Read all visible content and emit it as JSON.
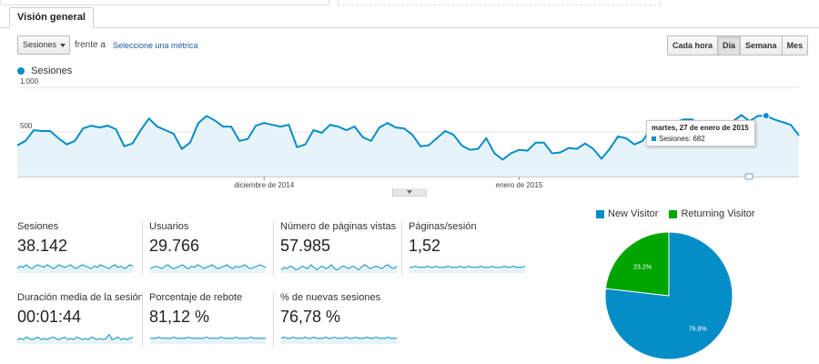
{
  "tabs": [
    {
      "label": "Visión general"
    }
  ],
  "controls": {
    "metric_select": "Sesiones",
    "vs_text": "frente a",
    "select_metric_link": "Seleccione una métrica",
    "periods": [
      {
        "label": "Cada hora",
        "active": false
      },
      {
        "label": "Día",
        "active": true
      },
      {
        "label": "Semana",
        "active": false
      },
      {
        "label": "Mes",
        "active": false
      }
    ]
  },
  "colors": {
    "accent": "#058dc7",
    "fill": "#e6f4fa",
    "returning": "#00a500",
    "link": "#1a5ba8"
  },
  "chart_data": [
    {
      "type": "area",
      "series": [
        {
          "name": "Sesiones",
          "values": [
            350,
            400,
            520,
            510,
            510,
            430,
            360,
            400,
            540,
            570,
            550,
            570,
            530,
            340,
            370,
            520,
            650,
            560,
            520,
            480,
            310,
            380,
            600,
            680,
            630,
            560,
            560,
            400,
            420,
            570,
            600,
            580,
            560,
            580,
            330,
            360,
            520,
            490,
            580,
            560,
            520,
            560,
            440,
            400,
            550,
            600,
            550,
            540,
            470,
            340,
            350,
            430,
            510,
            470,
            350,
            300,
            310,
            430,
            260,
            190,
            260,
            300,
            290,
            380,
            380,
            260,
            270,
            320,
            310,
            370,
            310,
            200,
            310,
            450,
            430,
            360,
            400,
            540,
            590,
            590,
            610,
            640,
            640,
            580,
            600,
            610,
            600,
            620,
            690,
            620,
            680,
            682,
            640,
            610,
            580,
            460
          ]
        }
      ],
      "ylim": [
        0,
        1000
      ],
      "ytick_labels": [
        "1.000",
        "500"
      ],
      "xtick_labels": [
        "diciembre de 2014",
        "enero de 2015"
      ],
      "highlight": {
        "label": "martes, 27 de enero de 2015",
        "series": "Sesiones",
        "value": 682
      },
      "grid": true
    },
    {
      "type": "pie",
      "slices": [
        {
          "label": "New Visitor",
          "value": 76.8,
          "color": "#058dc7"
        },
        {
          "label": "Returning Visitor",
          "value": 23.2,
          "color": "#00a500"
        }
      ],
      "slice_labels": [
        "76.8%",
        "23.2%"
      ],
      "legend_position": "top"
    }
  ],
  "tooltip": {
    "title": "martes, 27 de enero de 2015",
    "line": "Sesiones: 682"
  },
  "metrics": [
    {
      "label": "Sesiones",
      "value": "38.142",
      "spark": [
        5,
        7,
        6,
        8,
        6,
        5,
        7,
        8,
        7,
        6,
        8,
        7,
        5,
        6,
        8,
        7,
        6,
        7,
        8,
        6,
        5,
        7,
        8,
        7,
        6,
        5,
        7,
        6,
        8,
        7,
        6,
        5,
        7,
        8,
        6,
        7,
        5,
        6,
        8,
        7
      ]
    },
    {
      "label": "Usuarios",
      "value": "29.766",
      "spark": [
        5,
        6,
        7,
        6,
        5,
        7,
        8,
        6,
        5,
        6,
        7,
        8,
        6,
        5,
        7,
        6,
        8,
        7,
        5,
        6,
        7,
        8,
        6,
        5,
        6,
        7,
        8,
        6,
        5,
        7,
        6,
        7,
        8,
        6,
        5,
        6,
        7,
        8,
        7,
        6
      ]
    },
    {
      "label": "Número de páginas vistas",
      "value": "57.985",
      "spark": [
        4,
        6,
        5,
        7,
        6,
        4,
        5,
        7,
        6,
        5,
        8,
        6,
        4,
        6,
        7,
        5,
        6,
        8,
        5,
        4,
        6,
        7,
        6,
        5,
        7,
        6,
        4,
        6,
        8,
        7,
        5,
        6,
        7,
        6,
        5,
        7,
        8,
        6,
        5,
        7
      ]
    },
    {
      "label": "Páginas/sesión",
      "value": "1,52",
      "spark": [
        6,
        6,
        7,
        6,
        6,
        6,
        7,
        6,
        6,
        7,
        6,
        6,
        6,
        7,
        6,
        6,
        6,
        7,
        6,
        6,
        7,
        6,
        6,
        6,
        7,
        6,
        6,
        6,
        7,
        6,
        6,
        6,
        7,
        6,
        6,
        7,
        6,
        6,
        6,
        7
      ]
    },
    {
      "label": "Duración media de la sesión",
      "value": "00:01:44",
      "spark": [
        5,
        6,
        5,
        7,
        6,
        5,
        6,
        7,
        5,
        6,
        5,
        6,
        7,
        6,
        5,
        6,
        7,
        5,
        6,
        5,
        7,
        6,
        5,
        6,
        5,
        7,
        6,
        5,
        6,
        5,
        6,
        9,
        5,
        6,
        7,
        5,
        6,
        5,
        6,
        7
      ]
    },
    {
      "label": "Porcentaje de rebote",
      "value": "81,12 %",
      "spark": [
        6,
        6,
        6,
        7,
        6,
        6,
        6,
        6,
        7,
        6,
        6,
        6,
        6,
        7,
        6,
        6,
        6,
        6,
        6,
        7,
        6,
        6,
        6,
        6,
        7,
        6,
        6,
        6,
        6,
        7,
        6,
        6,
        6,
        6,
        7,
        6,
        6,
        6,
        6,
        6
      ]
    },
    {
      "label": "% de nuevas sesiones",
      "value": "76,78 %",
      "spark": [
        6,
        7,
        6,
        6,
        7,
        6,
        6,
        6,
        7,
        6,
        6,
        7,
        6,
        6,
        6,
        7,
        6,
        6,
        7,
        6,
        6,
        6,
        7,
        6,
        6,
        7,
        6,
        6,
        6,
        7,
        6,
        6,
        7,
        6,
        6,
        6,
        7,
        6,
        6,
        6
      ]
    }
  ]
}
